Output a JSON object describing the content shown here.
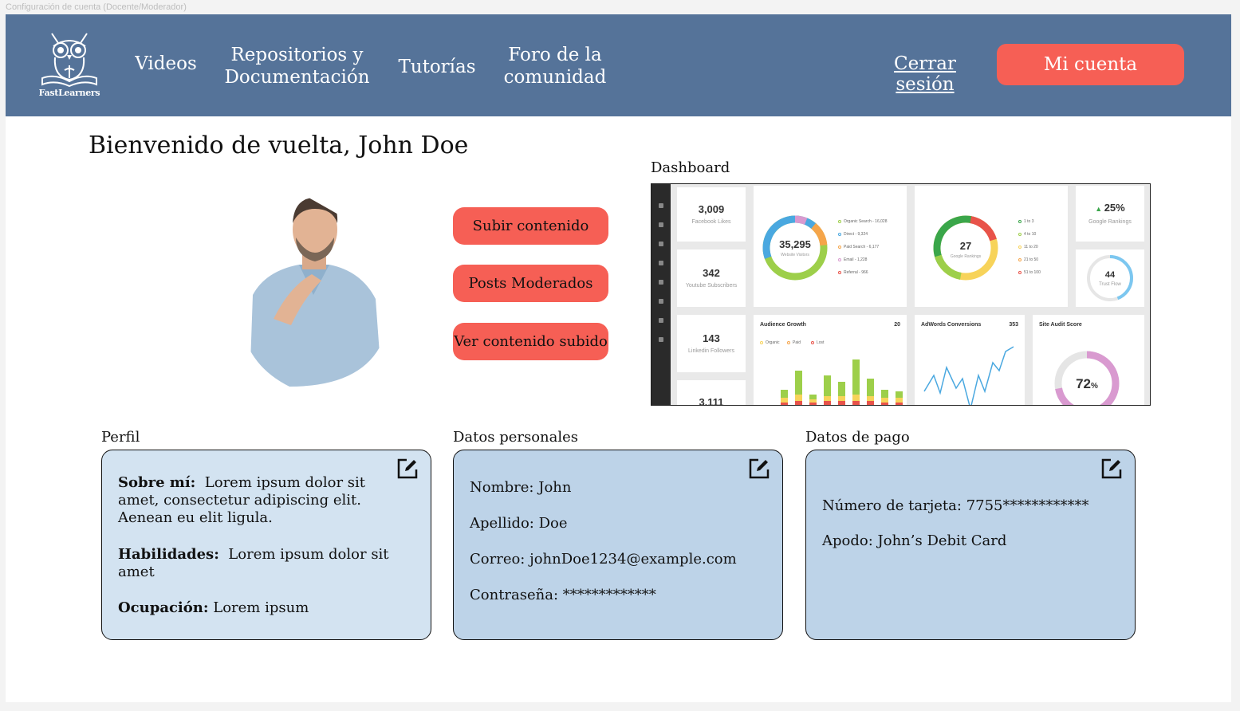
{
  "frame_title": "Configuración de cuenta (Docente/Moderador)",
  "header": {
    "logo_text": "FastLearners",
    "nav": {
      "videos": "Videos",
      "repos_line1": "Repositorios y",
      "repos_line2": "Documentación",
      "tutorials": "Tutorías",
      "forum_line1": "Foro de la",
      "forum_line2": "comunidad"
    },
    "logout": "Cerrar sesión",
    "account": "Mi cuenta"
  },
  "welcome": "Bienvenido de vuelta, John Doe",
  "actions": {
    "upload": "Subir contenido",
    "moderated": "Posts Moderados",
    "view_uploaded": "Ver contenido subido"
  },
  "dashboard": {
    "label": "Dashboard",
    "facebook_likes": "3,009",
    "facebook_label": "Facebook Likes",
    "youtube_subs": "342",
    "youtube_label": "Youtube Subscribers",
    "linkedin": "143",
    "linkedin_label": "Linkedin Followers",
    "extra": "3,111",
    "visitors": "35,295",
    "visitors_label": "Website Visitors",
    "visitor_legend": [
      "Organic Search - 16,028",
      "Direct - 9,324",
      "Paid Search - 6,177",
      "Email - 1,228",
      "Referral - 966"
    ],
    "rankings": "27",
    "rankings_label": "Google Rankings",
    "ranking_legend": [
      "1 to 3",
      "4 to 10",
      "11 to 20",
      "21 to 50",
      "51 to 100"
    ],
    "google_pct": "25%",
    "google_label": "Google Rankings",
    "trust": "44",
    "trust_label": "Trust Flow",
    "audience_title": "Audience Growth",
    "audience_value": "20",
    "audience_legend": [
      "Organic",
      "Paid",
      "Lost"
    ],
    "adwords_title": "AdWords Conversions",
    "adwords_value": "353",
    "audit_title": "Site Audit Score",
    "audit_value": "72",
    "audit_unit": "%",
    "colors": {
      "blue": "#4aa8e0",
      "green": "#9dcf4a",
      "yellow": "#f7d35a",
      "orange": "#f5a54a",
      "red": "#e8534a",
      "pink": "#d99ad0"
    }
  },
  "profile": {
    "title": "Perfil",
    "about_label": "Sobre mí:",
    "about_l1": "Lorem ipsum dolor sit",
    "about_l2": "amet, consectetur adipiscing elit.",
    "about_l3": "Aenean eu elit  ligula.",
    "skills_label": "Habilidades:",
    "skills_l1": "Lorem ipsum dolor sit",
    "skills_l2": "amet",
    "job_label": "Ocupación:",
    "job": "Lorem ipsum"
  },
  "personal": {
    "title": "Datos personales",
    "name_label": "Nombre:",
    "name": "John",
    "last_label": "Apellido:",
    "last": "Doe",
    "email_label": "Correo:",
    "email": "johnDoe1234@example.com",
    "pass_label": "Contraseña:",
    "pass": "*************"
  },
  "payment": {
    "title": "Datos de pago",
    "card_label": "Número de tarjeta:",
    "card": "7755************",
    "alias_label": "Apodo:",
    "alias": "John’s Debit Card"
  }
}
